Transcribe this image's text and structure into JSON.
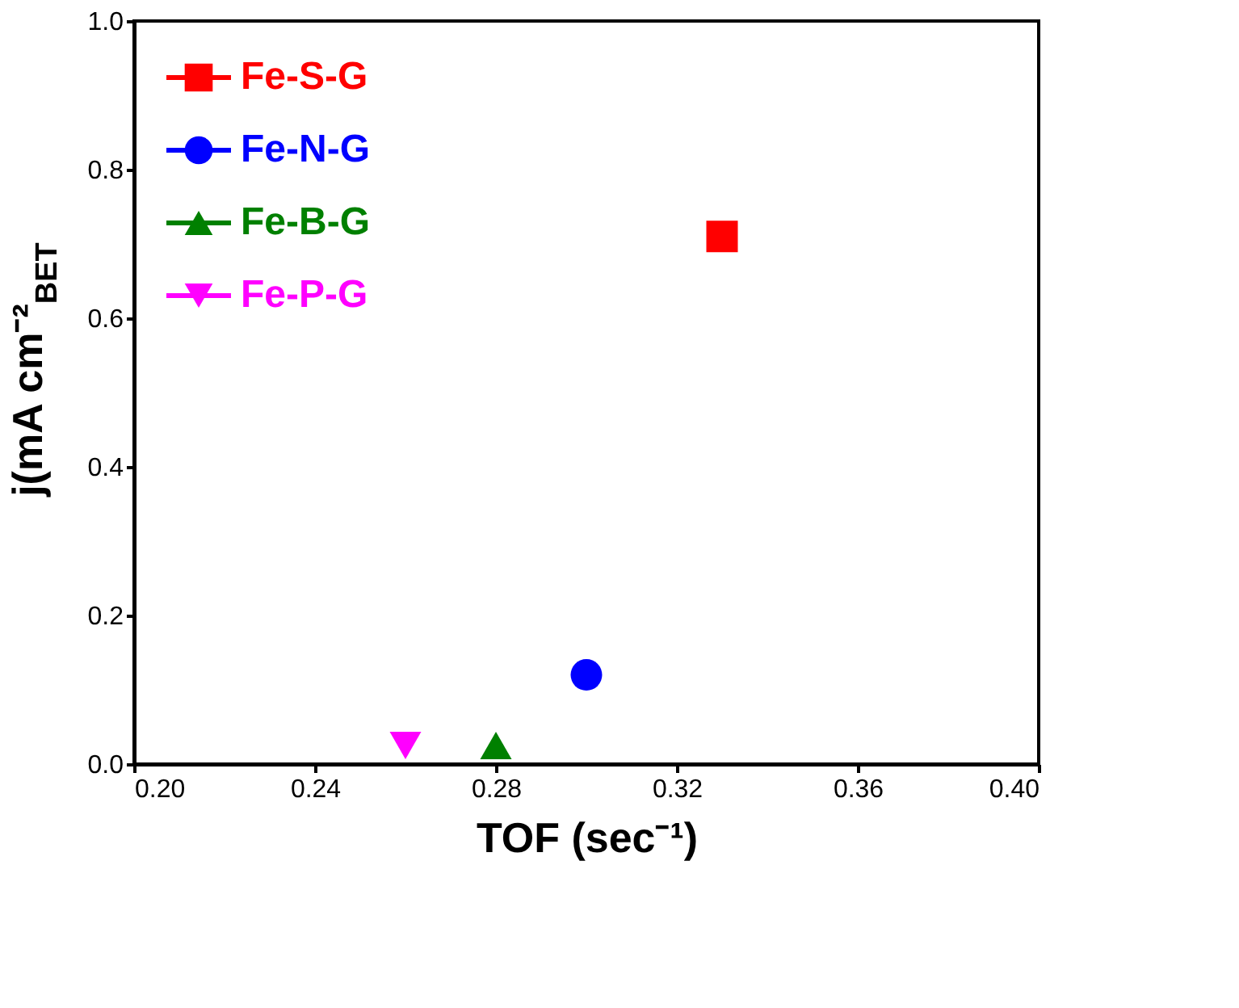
{
  "chart_data": {
    "type": "scatter",
    "xlabel": "TOF (sec⁻¹)",
    "ylabel": "j(mA cm⁻²$_{BET}$",
    "xlim": [
      0.2,
      0.4
    ],
    "xticks": [
      {
        "value": 0.2,
        "label": "0.20"
      },
      {
        "value": 0.24,
        "label": "0.24"
      },
      {
        "value": 0.28,
        "label": "0.28"
      },
      {
        "value": 0.32,
        "label": "0.32"
      },
      {
        "value": 0.36,
        "label": "0.36"
      },
      {
        "value": 0.4,
        "label": "0.40"
      }
    ],
    "ylim": [
      0,
      1
    ],
    "yticks": [
      {
        "value": 0,
        "label": "0.0"
      },
      {
        "value": 0.2,
        "label": "0.2"
      },
      {
        "value": 0.4,
        "label": "0.4"
      },
      {
        "value": 0.6,
        "label": "0.6"
      },
      {
        "value": 0.8,
        "label": "0.8"
      },
      {
        "value": 1,
        "label": "1.0"
      }
    ],
    "grid": false,
    "legend": "top left",
    "series": [
      {
        "name": "Fe-S-G",
        "color": "#ff0000",
        "marker": "square",
        "x": [
          0.33
        ],
        "values": [
          0.71
        ]
      },
      {
        "name": "Fe-N-G",
        "color": "#0000ff",
        "marker": "circle",
        "x": [
          0.3
        ],
        "values": [
          0.12
        ]
      },
      {
        "name": "Fe-B-G",
        "color": "#008000",
        "marker": "triangle",
        "x": [
          0.28
        ],
        "values": [
          0.025
        ]
      },
      {
        "name": "Fe-P-G",
        "color": "#ff00ff",
        "marker": "triangle-down",
        "x": [
          0.26
        ],
        "values": [
          0.025
        ]
      }
    ]
  }
}
